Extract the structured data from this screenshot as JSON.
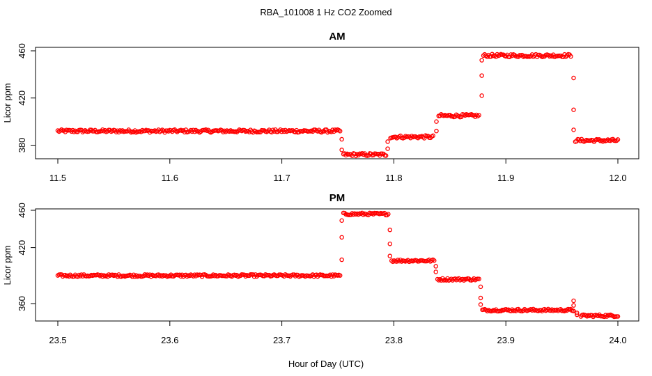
{
  "figure": {
    "title": "RBA_101008  1 Hz CO2 Zoomed",
    "xlabel": "Hour of Day (UTC)",
    "point_color": "#ff0000"
  },
  "chart_data": [
    {
      "type": "scatter",
      "title": "AM",
      "xlabel": "",
      "ylabel": "Licor ppm",
      "xlim": [
        11.5,
        12.0
      ],
      "ylim": [
        367,
        467
      ],
      "xticks": [
        "11.5",
        "11.6",
        "11.7",
        "11.8",
        "11.9",
        "12.0"
      ],
      "yticks": [
        "380",
        "420",
        "460"
      ],
      "segments": [
        {
          "x0": 11.5,
          "x1": 11.752,
          "y": 392
        },
        {
          "x0": 11.755,
          "x1": 11.793,
          "y": 372
        },
        {
          "x0": 11.797,
          "x1": 11.835,
          "y": 387
        },
        {
          "x0": 11.84,
          "x1": 11.876,
          "y": 405
        },
        {
          "x0": 11.88,
          "x1": 11.958,
          "y": 456
        },
        {
          "x0": 11.962,
          "x1": 12.0,
          "y": 384
        }
      ],
      "transitions": [
        {
          "x": 11.7535,
          "y": [
            385,
            376
          ]
        },
        {
          "x": 11.7945,
          "y": [
            377,
            383
          ]
        },
        {
          "x": 11.838,
          "y": [
            392,
            400
          ]
        },
        {
          "x": 11.8785,
          "y": [
            422,
            439,
            452
          ]
        },
        {
          "x": 11.9605,
          "y": [
            437,
            410,
            393
          ]
        }
      ]
    },
    {
      "type": "scatter",
      "title": "PM",
      "xlabel": "",
      "ylabel": "Licor ppm",
      "xlim": [
        23.5,
        24.0
      ],
      "ylim": [
        343,
        463
      ],
      "xticks": [
        "23.5",
        "23.6",
        "23.7",
        "23.8",
        "23.9",
        "24.0"
      ],
      "yticks": [
        "360",
        "420",
        "460"
      ],
      "segments": [
        {
          "x0": 23.5,
          "x1": 23.752,
          "y": 390
        },
        {
          "x0": 23.755,
          "x1": 23.795,
          "y": 456
        },
        {
          "x0": 23.798,
          "x1": 23.836,
          "y": 406
        },
        {
          "x0": 23.839,
          "x1": 23.876,
          "y": 386
        },
        {
          "x0": 23.879,
          "x1": 23.96,
          "y": 353
        },
        {
          "x0": 23.967,
          "x1": 24.0,
          "y": 347
        }
      ],
      "transitions": [
        {
          "x": 23.7535,
          "y": [
            407,
            431,
            449
          ]
        },
        {
          "x": 23.7965,
          "y": [
            439,
            424,
            411
          ]
        },
        {
          "x": 23.8375,
          "y": [
            400,
            394
          ]
        },
        {
          "x": 23.8775,
          "y": [
            378,
            366,
            359
          ]
        },
        {
          "x": 23.9605,
          "y": [
            363,
            358,
            352
          ]
        },
        {
          "x": 23.9635,
          "y": [
            350,
            348
          ]
        }
      ]
    }
  ]
}
